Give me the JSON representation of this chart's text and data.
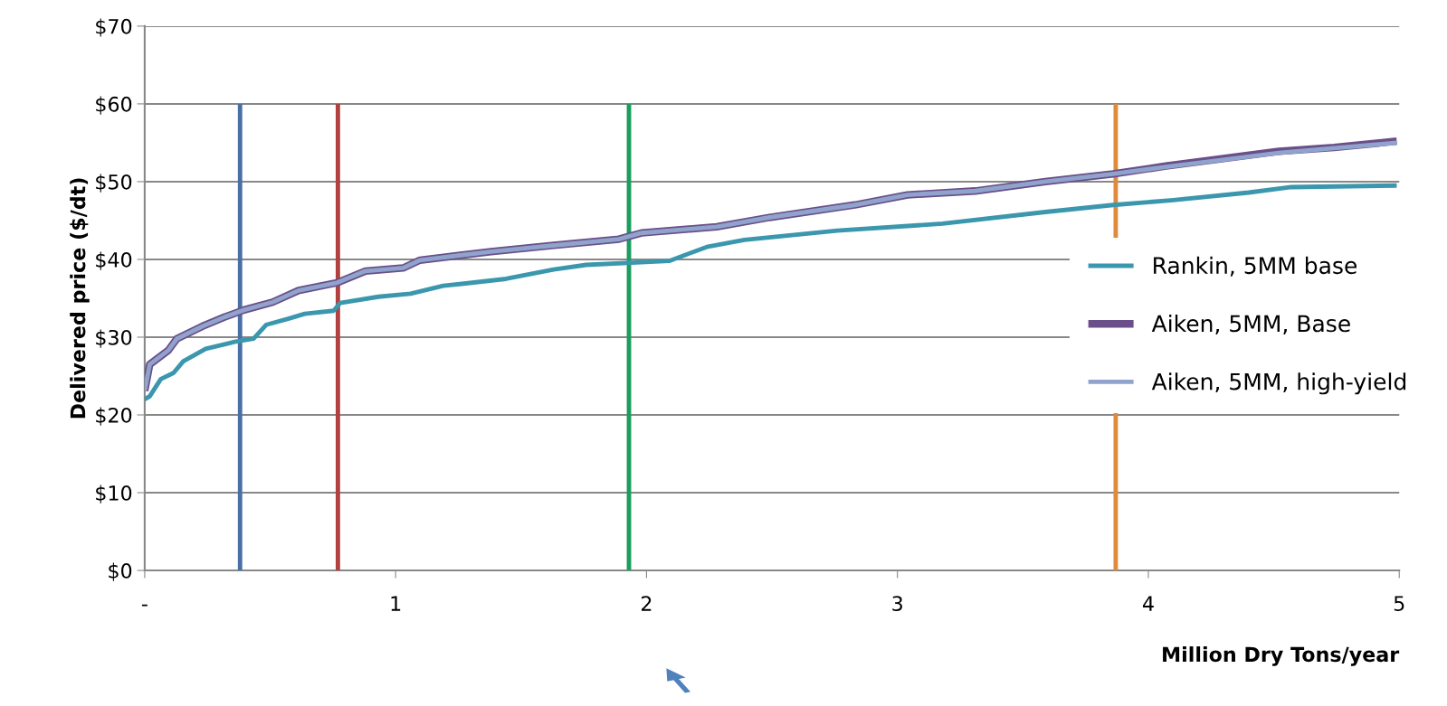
{
  "chart_data": {
    "type": "line",
    "xlabel": "Million Dry Tons/year",
    "ylabel": "Delivered price ($/dt)",
    "xlim": [
      0,
      5
    ],
    "xticks": [
      {
        "value": 0,
        "label": "-"
      },
      1,
      2,
      3,
      4,
      5
    ],
    "ylim": [
      0,
      70
    ],
    "yticks": [
      {
        "value": 0,
        "label": "$0"
      },
      {
        "value": 10,
        "label": "$10"
      },
      {
        "value": 20,
        "label": "$20"
      },
      {
        "value": 30,
        "label": "$30"
      },
      {
        "value": 40,
        "label": "$40"
      },
      {
        "value": 50,
        "label": "$50"
      },
      {
        "value": 60,
        "label": "$60"
      },
      {
        "value": 70,
        "label": "$70"
      }
    ],
    "grid": "y",
    "legend": "right",
    "marker": "none",
    "line_style": "solid",
    "series": [
      {
        "color": "#4a6fa5",
        "x": [
          0.38,
          0.38
        ],
        "values": [
          0,
          60
        ]
      },
      {
        "color": "#b0413e",
        "x": [
          0.77,
          0.77
        ],
        "values": [
          0,
          60
        ]
      },
      {
        "color": "#1a9e5e",
        "x": [
          1.93,
          1.93
        ],
        "values": [
          0,
          60
        ]
      },
      {
        "color": "#e08a3c",
        "x": [
          3.87,
          3.87
        ],
        "values": [
          0,
          60
        ]
      },
      {
        "name": "Rankin, 5MM base",
        "color": "#3a97ad",
        "x": [
          0,
          0.02,
          0.064,
          0.115,
          0.154,
          0.243,
          0.358,
          0.434,
          0.485,
          0.575,
          0.638,
          0.753,
          0.779,
          0.932,
          1.06,
          1.19,
          1.44,
          1.63,
          1.76,
          1.96,
          2.09,
          2.24,
          2.39,
          2.76,
          3.18,
          3.59,
          3.86,
          4.09,
          4.4,
          4.57,
          4.99
        ],
        "values": [
          22.0,
          22.4,
          24.6,
          25.4,
          26.9,
          28.5,
          29.4,
          29.8,
          31.6,
          32.4,
          33.0,
          33.4,
          34.4,
          35.2,
          35.6,
          36.6,
          37.5,
          38.7,
          39.3,
          39.6,
          39.8,
          41.6,
          42.5,
          43.7,
          44.6,
          46.1,
          47.0,
          47.6,
          48.6,
          49.3,
          49.5
        ]
      },
      {
        "name": "Aiken, 5MM, Base",
        "color": "#6a4f8a",
        "x": [
          0,
          0.02,
          0.094,
          0.128,
          0.23,
          0.319,
          0.396,
          0.51,
          0.613,
          0.766,
          0.88,
          1.03,
          1.097,
          1.38,
          1.63,
          1.89,
          1.98,
          2.28,
          2.49,
          2.83,
          3.04,
          3.31,
          3.59,
          3.86,
          4.07,
          4.52,
          4.74,
          4.99
        ],
        "values": [
          23.1,
          26.5,
          28.3,
          29.8,
          31.4,
          32.6,
          33.5,
          34.5,
          36.0,
          37.0,
          38.5,
          38.9,
          39.9,
          41.0,
          41.8,
          42.6,
          43.4,
          44.2,
          45.4,
          47.0,
          48.3,
          48.8,
          50.0,
          51.0,
          52.0,
          53.9,
          54.4,
          55.2
        ]
      },
      {
        "name": "Aiken, 5MM, high-yield",
        "color": "#8fa3cc",
        "x": [
          0,
          0.02,
          0.094,
          0.128,
          0.23,
          0.319,
          0.396,
          0.51,
          0.613,
          0.766,
          0.88,
          1.03,
          1.097,
          1.38,
          1.63,
          1.89,
          1.98,
          2.28,
          2.49,
          2.83,
          3.04,
          3.31,
          3.59,
          3.86,
          4.07,
          4.52,
          4.74,
          4.99
        ],
        "values": [
          23.1,
          26.5,
          28.3,
          29.8,
          31.4,
          32.6,
          33.5,
          34.5,
          36.0,
          37.0,
          38.5,
          38.9,
          39.9,
          41.0,
          41.8,
          42.6,
          43.4,
          44.2,
          45.4,
          47.0,
          48.3,
          48.8,
          50.0,
          51.0,
          51.9,
          53.7,
          54.3,
          55.0
        ]
      }
    ]
  }
}
